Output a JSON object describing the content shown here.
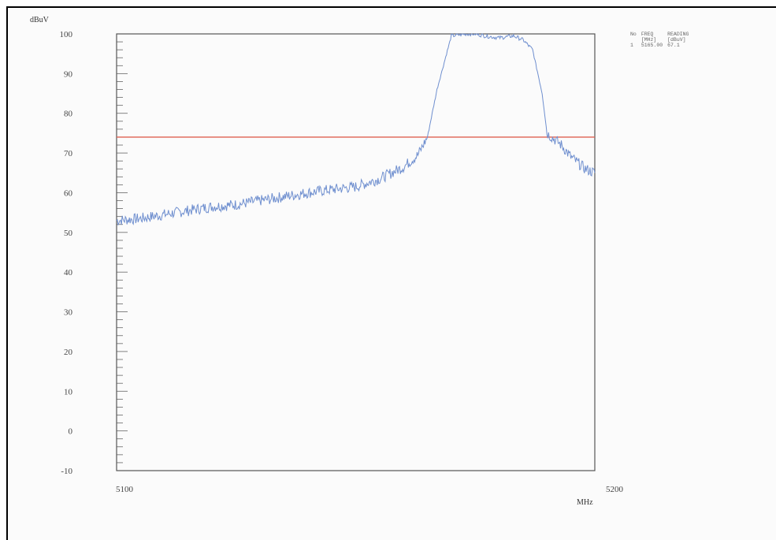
{
  "chart_data": {
    "type": "line",
    "xlabel": "MHz",
    "ylabel": "dBuV",
    "xlim": [
      5100,
      5200
    ],
    "ylim": [
      -10,
      100
    ],
    "x_ticks": [
      "5100",
      "5200"
    ],
    "y_ticks": [
      "100",
      "90",
      "80",
      "70",
      "60",
      "50",
      "40",
      "30",
      "20",
      "10",
      "0",
      "-10"
    ],
    "grid": false,
    "series": [
      {
        "color": "#6f8fcf",
        "x": [
          5100,
          5105,
          5110,
          5115,
          5120,
          5125,
          5130,
          5135,
          5140,
          5145,
          5150,
          5155,
          5160,
          5163,
          5165,
          5167,
          5170,
          5173,
          5175,
          5177,
          5180,
          5183,
          5185,
          5187,
          5189,
          5190,
          5191,
          5193,
          5195,
          5197,
          5198,
          5200
        ],
        "y": [
          53,
          53.5,
          54.5,
          55.5,
          56.5,
          57,
          58,
          59,
          60,
          60.8,
          61.5,
          63.5,
          66.5,
          69.5,
          74,
          86,
          99.5,
          100,
          100,
          99.5,
          99,
          99.5,
          98.5,
          96,
          85,
          75,
          74,
          72,
          69,
          67,
          66,
          65
        ]
      }
    ],
    "limit_line": {
      "value": 74,
      "color": "#e06050"
    }
  },
  "marker_table": {
    "headers": [
      [
        "No",
        "FREQ",
        "READING"
      ],
      [
        "",
        "[MHz]",
        "[dBuV]"
      ]
    ],
    "rows": [
      [
        "1",
        "5165.00",
        "67.1"
      ]
    ]
  }
}
